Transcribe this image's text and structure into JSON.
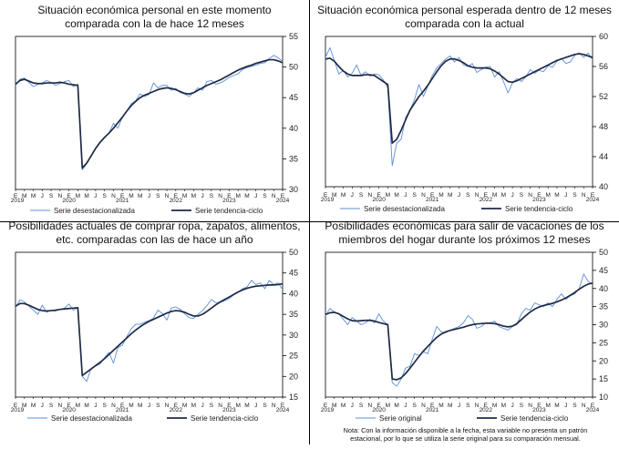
{
  "month_labels": [
    "E",
    "M",
    "M",
    "J",
    "S",
    "N",
    "E",
    "M",
    "M",
    "J",
    "S",
    "N",
    "E",
    "M",
    "M",
    "J",
    "S",
    "N",
    "E",
    "M",
    "M",
    "J",
    "S",
    "N",
    "E",
    "M",
    "M",
    "J",
    "S",
    "N",
    "E",
    "M",
    "M",
    "J",
    "S",
    "N",
    "E",
    "M",
    "M"
  ],
  "colors": {
    "seasonal": "#5b8fd6",
    "trend": "#1f2a44",
    "axis": "#000000"
  },
  "chart_data": [
    {
      "type": "line",
      "title": [
        "Situación económica personal en este momento",
        "comparada con la de hace 12 meses"
      ],
      "ylim": [
        30,
        55
      ],
      "yticks": [
        30,
        35,
        40,
        45,
        50,
        55
      ],
      "year_labels": [
        {
          "label": "2019",
          "at": 0
        },
        {
          "label": "2020",
          "at": 12
        },
        {
          "label": "2021",
          "at": 24
        },
        {
          "label": "2022",
          "at": 36
        },
        {
          "label": "2023",
          "at": 48
        },
        {
          "label": "2024",
          "at": 60
        }
      ],
      "series": [
        {
          "name": "Serie desestacionalizada",
          "style": "seasonal",
          "values": [
            47.0,
            48.0,
            48.2,
            47.5,
            46.8,
            47.2,
            47.4,
            47.8,
            47.5,
            47.0,
            47.3,
            47.6,
            47.8,
            46.8,
            47.2,
            33.2,
            34.2,
            35.5,
            36.8,
            37.8,
            38.5,
            39.2,
            40.8,
            40.0,
            41.8,
            42.8,
            44.0,
            44.5,
            45.6,
            45.2,
            45.5,
            47.4,
            46.6,
            47.0,
            47.0,
            46.2,
            46.5,
            45.8,
            45.6,
            45.2,
            45.8,
            46.6,
            46.2,
            47.6,
            47.8,
            47.2,
            47.4,
            47.8,
            48.3,
            48.6,
            48.9,
            49.6,
            49.9,
            50.1,
            50.3,
            50.6,
            50.7,
            51.4,
            51.9,
            51.5,
            50.9
          ]
        },
        {
          "name": "Serie tendencia-ciclo",
          "style": "trend",
          "values": [
            47.2,
            47.8,
            48.0,
            47.7,
            47.4,
            47.3,
            47.3,
            47.4,
            47.4,
            47.4,
            47.5,
            47.4,
            47.2,
            47.1,
            47.0,
            33.5,
            34.3,
            35.5,
            36.7,
            37.7,
            38.5,
            39.2,
            40.0,
            40.9,
            41.8,
            42.8,
            43.7,
            44.4,
            45.0,
            45.4,
            45.7,
            46.0,
            46.3,
            46.5,
            46.6,
            46.5,
            46.3,
            46.0,
            45.7,
            45.6,
            45.8,
            46.2,
            46.6,
            47.0,
            47.3,
            47.6,
            47.9,
            48.3,
            48.7,
            49.1,
            49.5,
            49.8,
            50.1,
            50.3,
            50.6,
            50.8,
            51.0,
            51.2,
            51.2,
            51.0,
            50.7
          ]
        }
      ],
      "legend": [
        "Serie desestacionalizada",
        "Serie tendencia-ciclo"
      ]
    },
    {
      "type": "line",
      "title": [
        "Situación económica personal esperada dentro de 12 meses",
        "comparada con la actual"
      ],
      "ylim": [
        40,
        60
      ],
      "yticks": [
        40,
        44,
        48,
        52,
        56,
        60
      ],
      "year_labels": [
        {
          "label": "2019",
          "at": 0
        },
        {
          "label": "2020",
          "at": 12
        },
        {
          "label": "2021",
          "at": 24
        },
        {
          "label": "2022",
          "at": 36
        },
        {
          "label": "2023",
          "at": 48
        },
        {
          "label": "2024",
          "at": 60
        }
      ],
      "series": [
        {
          "name": "Serie desestacionalizada",
          "style": "seasonal",
          "values": [
            57.2,
            58.5,
            56.8,
            55.0,
            55.5,
            54.6,
            55.1,
            56.2,
            54.8,
            55.3,
            54.7,
            55.0,
            54.9,
            54.2,
            53.2,
            42.8,
            45.8,
            46.3,
            49.2,
            50.2,
            51.6,
            53.6,
            52.0,
            53.4,
            54.8,
            55.8,
            56.4,
            57.0,
            57.4,
            56.6,
            57.2,
            56.2,
            56.0,
            56.4,
            55.2,
            55.6,
            55.9,
            56.0,
            54.6,
            55.3,
            54.0,
            52.5,
            53.8,
            54.4,
            54.0,
            54.6,
            55.6,
            55.1,
            55.5,
            55.3,
            56.1,
            55.9,
            56.7,
            57.1,
            56.4,
            56.6,
            57.5,
            57.8,
            57.2,
            57.8,
            56.9
          ]
        },
        {
          "name": "Serie tendencia-ciclo",
          "style": "trend",
          "values": [
            57.0,
            57.1,
            56.7,
            56.0,
            55.4,
            55.0,
            54.8,
            54.8,
            54.8,
            54.9,
            54.9,
            54.8,
            54.4,
            54.0,
            53.6,
            45.8,
            46.3,
            47.5,
            48.9,
            50.2,
            51.1,
            52.0,
            52.7,
            53.5,
            54.4,
            55.3,
            56.1,
            56.7,
            57.0,
            57.0,
            56.8,
            56.5,
            56.1,
            55.9,
            55.8,
            55.8,
            55.8,
            55.7,
            55.4,
            55.0,
            54.5,
            54.0,
            53.9,
            54.1,
            54.4,
            54.7,
            55.0,
            55.3,
            55.6,
            55.9,
            56.2,
            56.5,
            56.8,
            57.0,
            57.2,
            57.4,
            57.6,
            57.7,
            57.6,
            57.4,
            57.2
          ]
        }
      ],
      "legend": [
        "Serie desestacionalizada",
        "Serie tendencia-ciclo"
      ]
    },
    {
      "type": "line",
      "title": [
        "Posibilidades actuales de comprar ropa, zapatos, alimentos,",
        "etc. comparadas con las de hace un año"
      ],
      "ylim": [
        15,
        50
      ],
      "yticks": [
        15,
        20,
        25,
        30,
        35,
        40,
        45,
        50
      ],
      "year_labels": [
        {
          "label": "2019",
          "at": 0
        },
        {
          "label": "2020",
          "at": 12
        },
        {
          "label": "2021",
          "at": 24
        },
        {
          "label": "2022",
          "at": 36
        },
        {
          "label": "2023",
          "at": 48
        },
        {
          "label": "2024",
          "at": 60
        }
      ],
      "series": [
        {
          "name": "Serie desestacionalizada",
          "style": "seasonal",
          "values": [
            36.5,
            38.5,
            38.0,
            37.0,
            36.0,
            35.0,
            37.2,
            35.5,
            36.0,
            35.8,
            36.2,
            36.5,
            37.5,
            36.0,
            36.6,
            20.0,
            18.8,
            22.0,
            22.5,
            23.0,
            24.5,
            25.8,
            23.2,
            27.0,
            27.5,
            29.6,
            31.5,
            32.6,
            32.6,
            33.1,
            33.5,
            34.1,
            36.0,
            35.2,
            33.6,
            36.5,
            36.8,
            36.2,
            35.1,
            34.2,
            34.0,
            35.0,
            35.9,
            37.1,
            38.6,
            37.8,
            37.9,
            38.3,
            38.8,
            39.7,
            40.3,
            41.2,
            41.6,
            43.2,
            42.2,
            42.6,
            41.2,
            43.2,
            42.2,
            42.6,
            41.0
          ]
        },
        {
          "name": "Serie tendencia-ciclo",
          "style": "trend",
          "values": [
            37.0,
            37.6,
            37.6,
            37.2,
            36.7,
            36.2,
            35.9,
            35.8,
            35.9,
            36.0,
            36.2,
            36.3,
            36.4,
            36.5,
            36.6,
            20.2,
            21.0,
            21.8,
            22.6,
            23.4,
            24.3,
            25.3,
            26.3,
            27.3,
            28.3,
            29.3,
            30.3,
            31.2,
            32.0,
            32.7,
            33.3,
            33.8,
            34.3,
            34.8,
            35.3,
            35.7,
            35.9,
            35.8,
            35.5,
            35.0,
            34.6,
            34.6,
            35.0,
            35.7,
            36.5,
            37.3,
            38.0,
            38.6,
            39.2,
            39.8,
            40.4,
            40.9,
            41.3,
            41.6,
            41.8,
            41.9,
            42.0,
            42.1,
            42.1,
            42.2,
            42.4
          ]
        }
      ],
      "legend": [
        "Serie desestacionalizada",
        "Serie tendencia-ciclo"
      ]
    },
    {
      "type": "line",
      "title": [
        "Posibilidades económicas para salir de vacaciones de los",
        "miembros del hogar durante los próximos 12 meses"
      ],
      "ylim": [
        10,
        50
      ],
      "yticks": [
        10,
        15,
        20,
        25,
        30,
        35,
        40,
        45,
        50
      ],
      "year_labels": [
        {
          "label": "2019",
          "at": 0
        },
        {
          "label": "2020",
          "at": 12
        },
        {
          "label": "2021",
          "at": 24
        },
        {
          "label": "2022",
          "at": 36
        },
        {
          "label": "2023",
          "at": 48
        },
        {
          "label": "2024",
          "at": 60
        }
      ],
      "series": [
        {
          "name": "Serie original",
          "style": "seasonal",
          "values": [
            32.5,
            34.5,
            33.5,
            33.0,
            31.5,
            30.0,
            32.0,
            31.0,
            30.0,
            30.5,
            31.5,
            30.5,
            33.0,
            31.0,
            30.0,
            14.0,
            13.0,
            15.0,
            18.0,
            18.5,
            22.0,
            21.5,
            22.5,
            22.0,
            26.0,
            29.5,
            28.0,
            27.8,
            28.5,
            29.0,
            29.5,
            30.5,
            32.5,
            31.5,
            29.0,
            29.5,
            30.5,
            30.5,
            31.0,
            29.5,
            29.0,
            28.5,
            29.5,
            30.0,
            33.0,
            34.5,
            34.0,
            36.0,
            35.5,
            35.0,
            36.0,
            35.0,
            37.0,
            38.5,
            37.0,
            38.0,
            38.5,
            40.0,
            44.0,
            42.0,
            41.0
          ]
        },
        {
          "name": "Serie tendencia-ciclo",
          "style": "trend",
          "values": [
            32.8,
            33.3,
            33.4,
            33.0,
            32.3,
            31.6,
            31.1,
            31.0,
            31.1,
            31.2,
            31.2,
            31.0,
            30.6,
            30.3,
            30.0,
            15.0,
            14.8,
            15.3,
            16.5,
            18.0,
            19.6,
            21.2,
            22.7,
            24.0,
            25.3,
            26.5,
            27.4,
            28.0,
            28.4,
            28.7,
            29.0,
            29.3,
            29.7,
            30.0,
            30.2,
            30.3,
            30.4,
            30.4,
            30.3,
            30.0,
            29.6,
            29.4,
            29.6,
            30.3,
            31.4,
            32.5,
            33.5,
            34.3,
            34.9,
            35.3,
            35.6,
            35.9,
            36.3,
            36.8,
            37.4,
            38.1,
            38.9,
            39.8,
            40.6,
            41.2,
            41.5
          ]
        }
      ],
      "legend": [
        "Serie original",
        "Serie tendencia-ciclo"
      ]
    }
  ],
  "note": [
    "Nota: Con la información disponible a la fecha, esta variable no presenta un patrón",
    "estacional, por lo que se utiliza la serie original para su comparación mensual."
  ]
}
